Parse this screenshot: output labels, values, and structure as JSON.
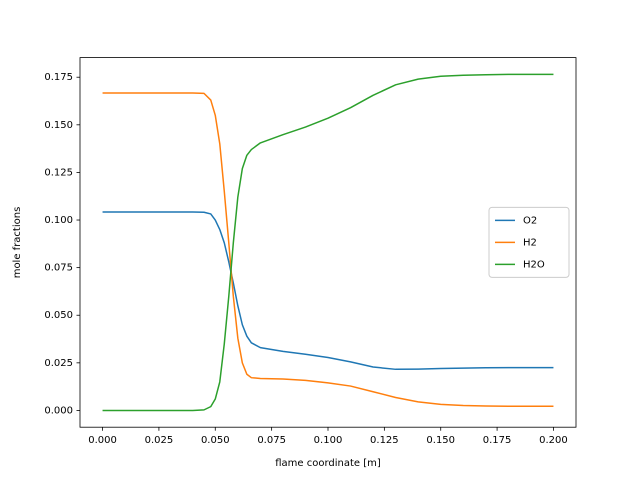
{
  "chart_data": {
    "type": "line",
    "xlabel": "flame coordinate [m]",
    "ylabel": "mole fractions",
    "x": [
      0,
      0.02,
      0.04,
      0.045,
      0.048,
      0.05,
      0.052,
      0.054,
      0.056,
      0.058,
      0.06,
      0.062,
      0.064,
      0.066,
      0.07,
      0.08,
      0.09,
      0.1,
      0.11,
      0.12,
      0.13,
      0.14,
      0.15,
      0.16,
      0.17,
      0.18,
      0.19,
      0.2
    ],
    "series": [
      {
        "name": "O2",
        "color": "#1f77b4",
        "values": [
          0.1042,
          0.1042,
          0.1042,
          0.1041,
          0.1032,
          0.1,
          0.095,
          0.088,
          0.078,
          0.067,
          0.055,
          0.045,
          0.039,
          0.0355,
          0.033,
          0.031,
          0.0295,
          0.0278,
          0.0255,
          0.0228,
          0.0216,
          0.0217,
          0.022,
          0.0222,
          0.0224,
          0.0225,
          0.0225,
          0.0225
        ]
      },
      {
        "name": "H2",
        "color": "#ff7f0e",
        "values": [
          0.1667,
          0.1667,
          0.1667,
          0.1665,
          0.163,
          0.155,
          0.14,
          0.115,
          0.088,
          0.06,
          0.038,
          0.025,
          0.019,
          0.0172,
          0.0168,
          0.0165,
          0.0158,
          0.0145,
          0.0128,
          0.0098,
          0.0068,
          0.0045,
          0.0032,
          0.0026,
          0.0023,
          0.0022,
          0.0022,
          0.0022
        ]
      },
      {
        "name": "H2O",
        "color": "#2ca02c",
        "values": [
          0,
          0,
          0,
          0.0003,
          0.002,
          0.006,
          0.015,
          0.035,
          0.06,
          0.088,
          0.112,
          0.127,
          0.134,
          0.137,
          0.1405,
          0.1448,
          0.1488,
          0.1535,
          0.159,
          0.1655,
          0.171,
          0.174,
          0.1755,
          0.176,
          0.1763,
          0.1765,
          0.1765,
          0.1765
        ]
      }
    ],
    "xlim": [
      -0.01,
      0.21
    ],
    "ylim": [
      -0.0088,
      0.1853
    ],
    "xticks": [
      {
        "value": 0,
        "label": "0.000"
      },
      0.025,
      {
        "value": 0.05,
        "label": "0.050"
      },
      0.075,
      {
        "value": 0.1,
        "label": "0.100"
      },
      0.125,
      {
        "value": 0.15,
        "label": "0.150"
      },
      0.175,
      {
        "value": 0.2,
        "label": "0.200"
      }
    ],
    "yticks": [
      {
        "value": 0,
        "label": "0.000"
      },
      0.025,
      {
        "value": 0.05,
        "label": "0.050"
      },
      0.075,
      {
        "value": 0.1,
        "label": "0.100"
      },
      0.125,
      {
        "value": 0.15,
        "label": "0.150"
      },
      0.175
    ],
    "grid": false,
    "legend": "center right"
  }
}
